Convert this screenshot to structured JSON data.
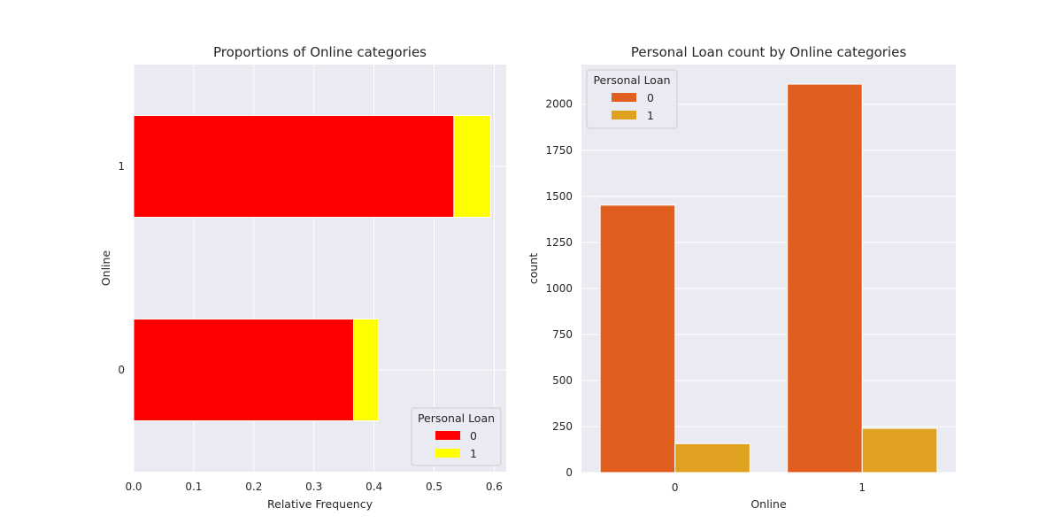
{
  "chart_data": [
    {
      "type": "bar",
      "orientation": "horizontal",
      "stacked": true,
      "title": "Proportions of Online categories",
      "xlabel": "Relative Frequency",
      "ylabel": "Online",
      "categories": [
        "0",
        "1"
      ],
      "series": [
        {
          "name": "0",
          "values": [
            0.366,
            0.533
          ]
        },
        {
          "name": "1",
          "values": [
            0.041,
            0.061
          ]
        }
      ],
      "xlim": [
        0,
        0.62
      ],
      "xticks": [
        "0.0",
        "0.1",
        "0.2",
        "0.3",
        "0.4",
        "0.5",
        "0.6"
      ],
      "colors": [
        "#ff0000",
        "#ffff00"
      ],
      "legend": {
        "title": "Personal Loan",
        "placement": "bottom-right"
      },
      "grid": true
    },
    {
      "type": "bar",
      "orientation": "vertical",
      "grouped": true,
      "title": "Personal Loan count by Online categories",
      "xlabel": "Online",
      "ylabel": "count",
      "categories": [
        "0",
        "1"
      ],
      "series": [
        {
          "name": "0",
          "values": [
            1452,
            2109
          ]
        },
        {
          "name": "1",
          "values": [
            157,
            240
          ]
        }
      ],
      "ylim": [
        0,
        2215
      ],
      "yticks": [
        "0",
        "250",
        "500",
        "750",
        "1000",
        "1250",
        "1500",
        "1750",
        "2000"
      ],
      "colors": [
        "#e05f1f",
        "#e0a020"
      ],
      "legend": {
        "title": "Personal Loan",
        "placement": "top-left"
      },
      "grid": true
    }
  ]
}
